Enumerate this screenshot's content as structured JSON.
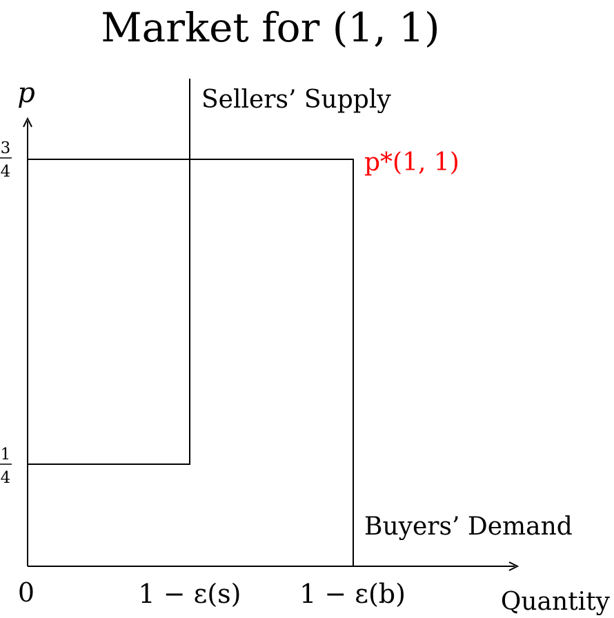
{
  "title": "Market for (1, 1)",
  "axes": {
    "y_label": "p",
    "x_label": "Quantity",
    "origin_label": "0",
    "y_ticks": [
      {
        "numerator": "3",
        "denominator": "4"
      },
      {
        "numerator": "1",
        "denominator": "4"
      }
    ],
    "x_ticks": [
      "1 − ε(s)",
      "1 − ε(b)"
    ]
  },
  "curves": {
    "supply_label": "Sellers’ Supply",
    "demand_label": "Buyers’ Demand",
    "equilibrium_label": "p*(1, 1)",
    "equilibrium_color": "#ff0000"
  }
}
